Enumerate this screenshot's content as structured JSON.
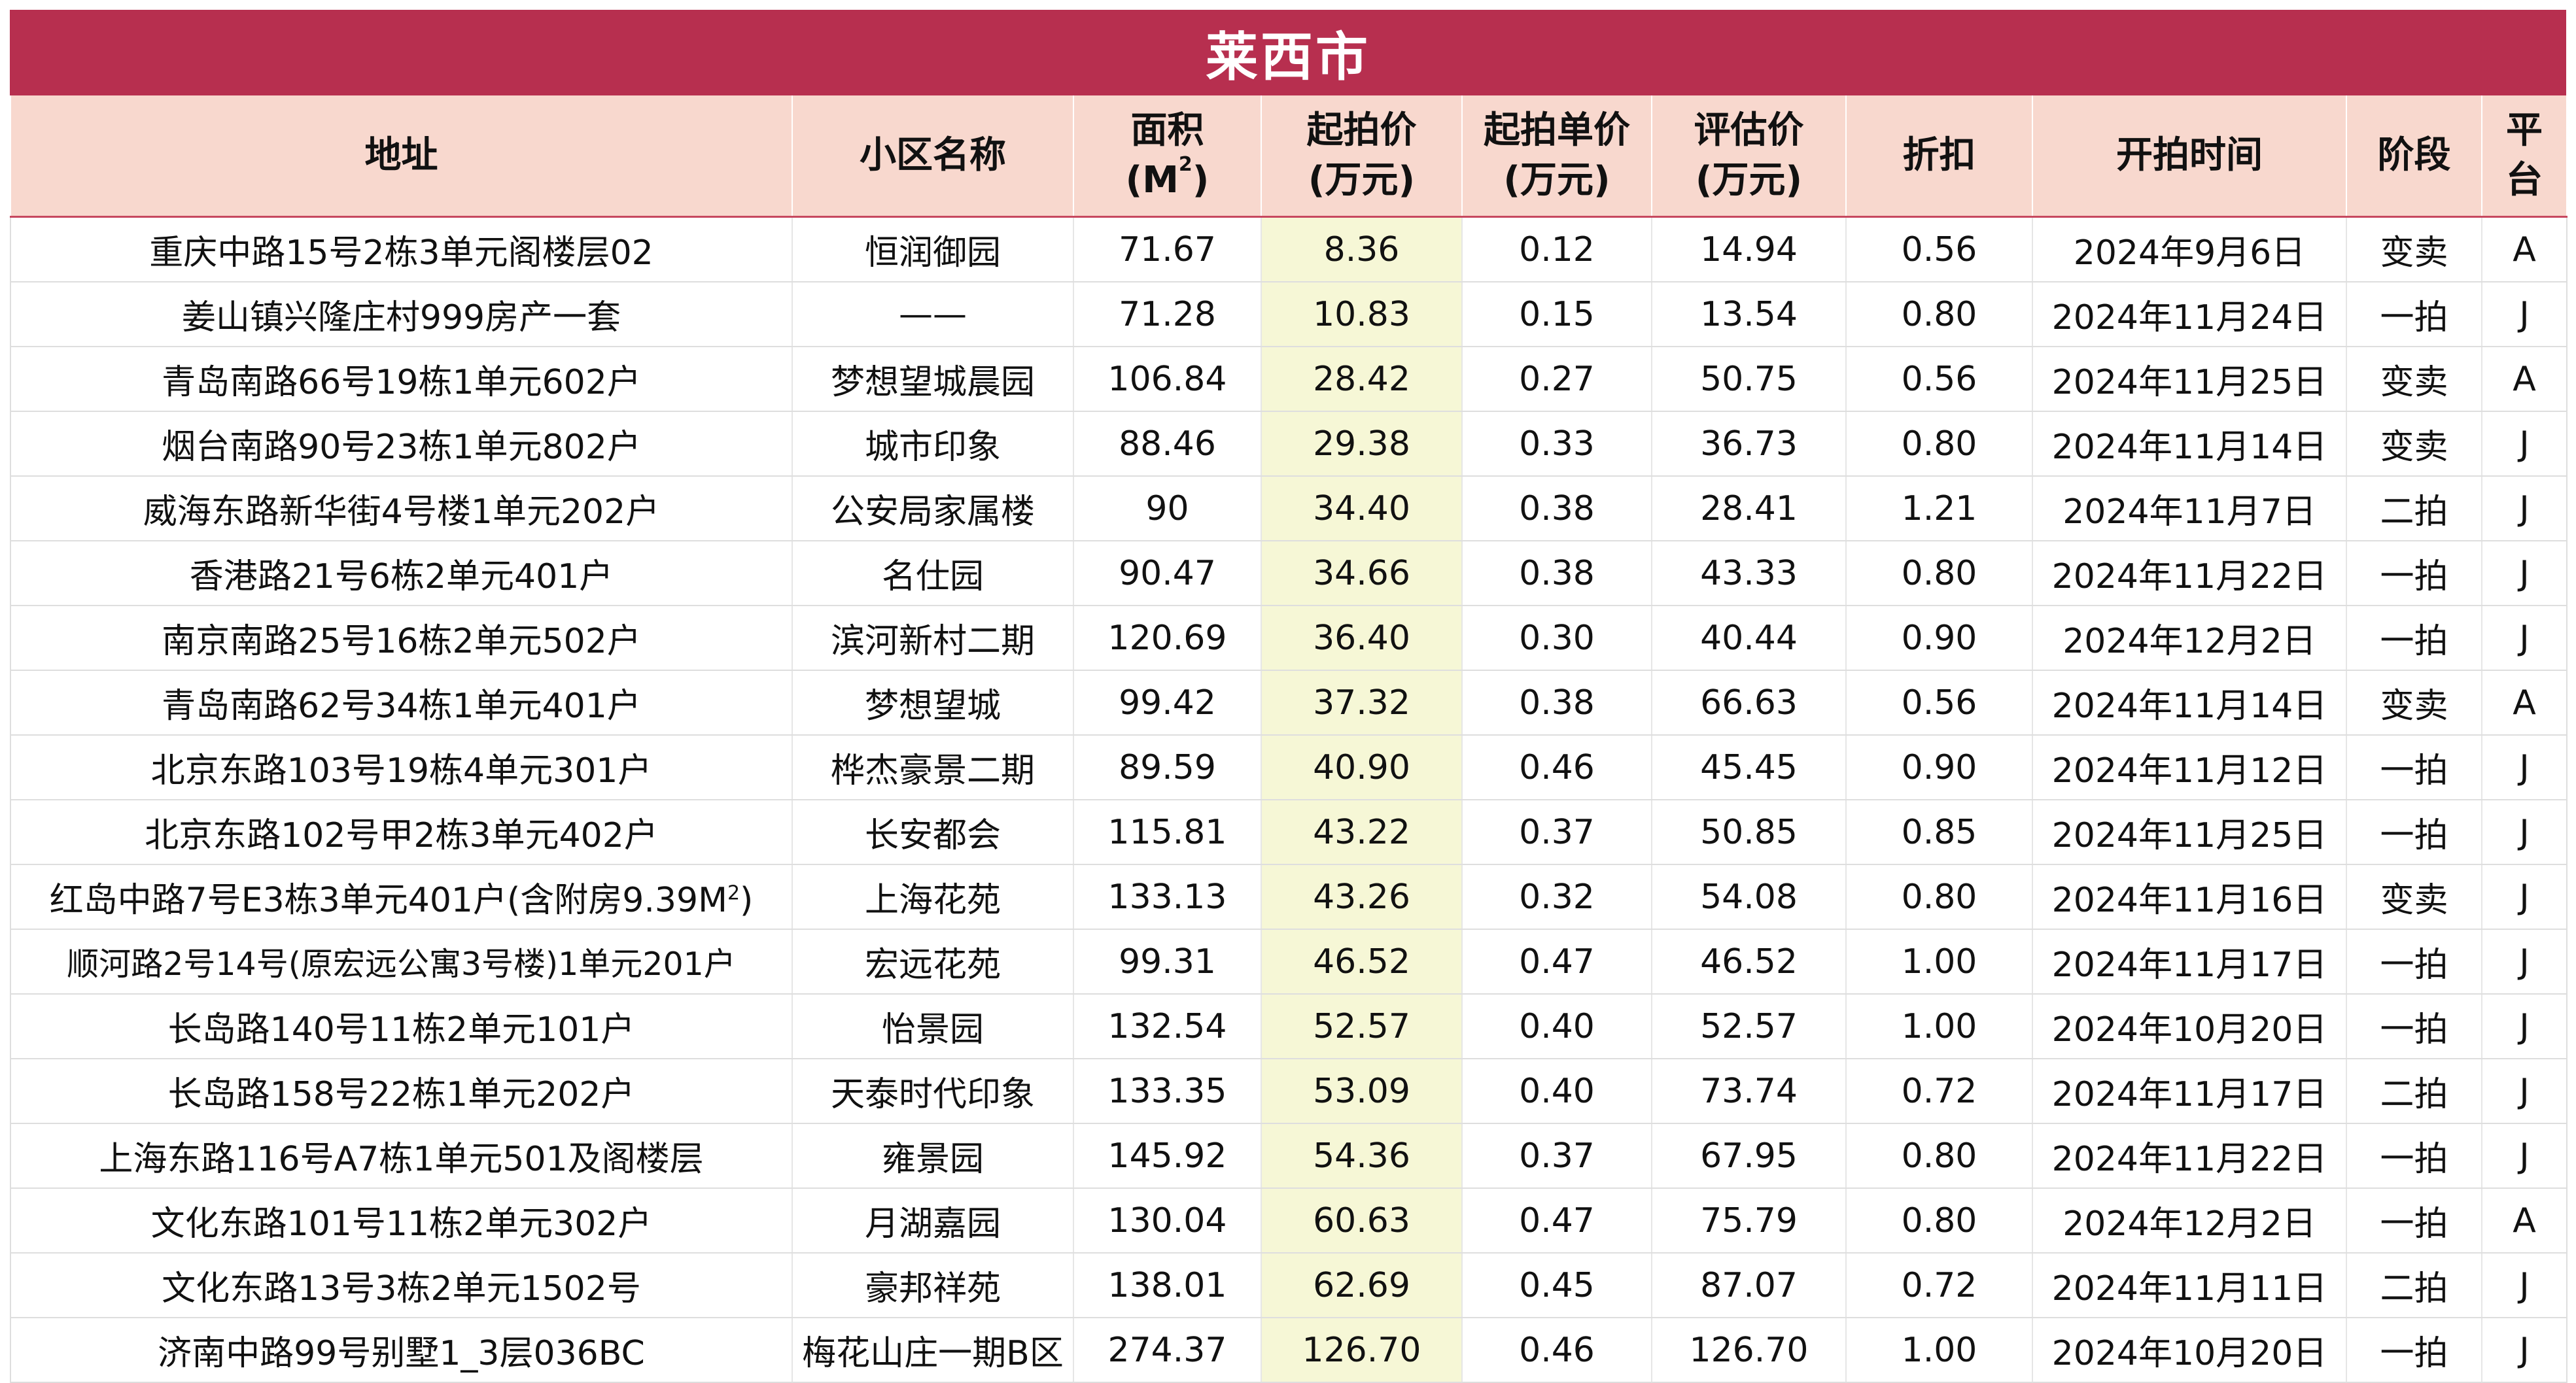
{
  "title": "莱西市",
  "headers": {
    "address": "地址",
    "community": "小区名称",
    "area_line1": "面积",
    "area_line2": "(M",
    "area_sup": "2",
    "area_line2_end": ")",
    "start_price_line1": "起拍价",
    "start_price_line2": "(万元)",
    "unit_price_line1": "起拍单价",
    "unit_price_line2": "(万元)",
    "eval_line1": "评估价",
    "eval_line2": "(万元)",
    "discount": "折扣",
    "start_time": "开拍时间",
    "stage": "阶段",
    "platform_line1": "平",
    "platform_line2": "台"
  },
  "colors": {
    "title_bg": "#b72f4f",
    "header_bg": "#f8d8ce",
    "highlight_col": "#f6f7d6"
  },
  "rows": [
    {
      "address": "重庆中路15号2栋3单元阁楼层02",
      "community": "恒润御园",
      "area": "71.67",
      "start_price": "8.36",
      "unit_price": "0.12",
      "eval_price": "14.94",
      "discount": "0.56",
      "start_time": "2024年9月6日",
      "stage": "变卖",
      "platform": "A"
    },
    {
      "address": "姜山镇兴隆庄村999房产一套",
      "community": "——",
      "area": "71.28",
      "start_price": "10.83",
      "unit_price": "0.15",
      "eval_price": "13.54",
      "discount": "0.80",
      "start_time": "2024年11月24日",
      "stage": "一拍",
      "platform": "J"
    },
    {
      "address": "青岛南路66号19栋1单元602户",
      "community": "梦想望城晨园",
      "area": "106.84",
      "start_price": "28.42",
      "unit_price": "0.27",
      "eval_price": "50.75",
      "discount": "0.56",
      "start_time": "2024年11月25日",
      "stage": "变卖",
      "platform": "A"
    },
    {
      "address": "烟台南路90号23栋1单元802户",
      "community": "城市印象",
      "area": "88.46",
      "start_price": "29.38",
      "unit_price": "0.33",
      "eval_price": "36.73",
      "discount": "0.80",
      "start_time": "2024年11月14日",
      "stage": "变卖",
      "platform": "J"
    },
    {
      "address": "威海东路新华街4号楼1单元202户",
      "community": "公安局家属楼",
      "area": "90",
      "start_price": "34.40",
      "unit_price": "0.38",
      "eval_price": "28.41",
      "discount": "1.21",
      "start_time": "2024年11月7日",
      "stage": "二拍",
      "platform": "J"
    },
    {
      "address": "香港路21号6栋2单元401户",
      "community": "名仕园",
      "area": "90.47",
      "start_price": "34.66",
      "unit_price": "0.38",
      "eval_price": "43.33",
      "discount": "0.80",
      "start_time": "2024年11月22日",
      "stage": "一拍",
      "platform": "J"
    },
    {
      "address": "南京南路25号16栋2单元502户",
      "community": "滨河新村二期",
      "area": "120.69",
      "start_price": "36.40",
      "unit_price": "0.30",
      "eval_price": "40.44",
      "discount": "0.90",
      "start_time": "2024年12月2日",
      "stage": "一拍",
      "platform": "J"
    },
    {
      "address": "青岛南路62号34栋1单元401户",
      "community": "梦想望城",
      "area": "99.42",
      "start_price": "37.32",
      "unit_price": "0.38",
      "eval_price": "66.63",
      "discount": "0.56",
      "start_time": "2024年11月14日",
      "stage": "变卖",
      "platform": "A"
    },
    {
      "address": "北京东路103号19栋4单元301户",
      "community": "桦杰豪景二期",
      "area": "89.59",
      "start_price": "40.90",
      "unit_price": "0.46",
      "eval_price": "45.45",
      "discount": "0.90",
      "start_time": "2024年11月12日",
      "stage": "一拍",
      "platform": "J"
    },
    {
      "address": "北京东路102号甲2栋3单元402户",
      "community": "长安都会",
      "area": "115.81",
      "start_price": "43.22",
      "unit_price": "0.37",
      "eval_price": "50.85",
      "discount": "0.85",
      "start_time": "2024年11月25日",
      "stage": "一拍",
      "platform": "J"
    },
    {
      "address": "红岛中路7号E3栋3单元401户(含附房9.39M",
      "address_sup": "2",
      "address_end": ")",
      "community": "上海花苑",
      "area": "133.13",
      "start_price": "43.26",
      "unit_price": "0.32",
      "eval_price": "54.08",
      "discount": "0.80",
      "start_time": "2024年11月16日",
      "stage": "变卖",
      "platform": "J"
    },
    {
      "address": "顺河路2号14号(原宏远公寓3号楼)1单元201户",
      "community": "宏远花苑",
      "area": "99.31",
      "start_price": "46.52",
      "unit_price": "0.47",
      "eval_price": "46.52",
      "discount": "1.00",
      "start_time": "2024年11月17日",
      "stage": "一拍",
      "platform": "J"
    },
    {
      "address": "长岛路140号11栋2单元101户",
      "community": "怡景园",
      "area": "132.54",
      "start_price": "52.57",
      "unit_price": "0.40",
      "eval_price": "52.57",
      "discount": "1.00",
      "start_time": "2024年10月20日",
      "stage": "一拍",
      "platform": "J"
    },
    {
      "address": "长岛路158号22栋1单元202户",
      "community": "天泰时代印象",
      "area": "133.35",
      "start_price": "53.09",
      "unit_price": "0.40",
      "eval_price": "73.74",
      "discount": "0.72",
      "start_time": "2024年11月17日",
      "stage": "二拍",
      "platform": "J"
    },
    {
      "address": "上海东路116号A7栋1单元501及阁楼层",
      "community": "雍景园",
      "area": "145.92",
      "start_price": "54.36",
      "unit_price": "0.37",
      "eval_price": "67.95",
      "discount": "0.80",
      "start_time": "2024年11月22日",
      "stage": "一拍",
      "platform": "J"
    },
    {
      "address": "文化东路101号11栋2单元302户",
      "community": "月湖嘉园",
      "area": "130.04",
      "start_price": "60.63",
      "unit_price": "0.47",
      "eval_price": "75.79",
      "discount": "0.80",
      "start_time": "2024年12月2日",
      "stage": "一拍",
      "platform": "A"
    },
    {
      "address": "文化东路13号3栋2单元1502号",
      "community": "豪邦祥苑",
      "area": "138.01",
      "start_price": "62.69",
      "unit_price": "0.45",
      "eval_price": "87.07",
      "discount": "0.72",
      "start_time": "2024年11月11日",
      "stage": "二拍",
      "platform": "J"
    },
    {
      "address": "济南中路99号别墅1_3层036BC",
      "community": "梅花山庄一期B区",
      "area": "274.37",
      "start_price": "126.70",
      "unit_price": "0.46",
      "eval_price": "126.70",
      "discount": "1.00",
      "start_time": "2024年10月20日",
      "stage": "一拍",
      "platform": "J"
    }
  ]
}
